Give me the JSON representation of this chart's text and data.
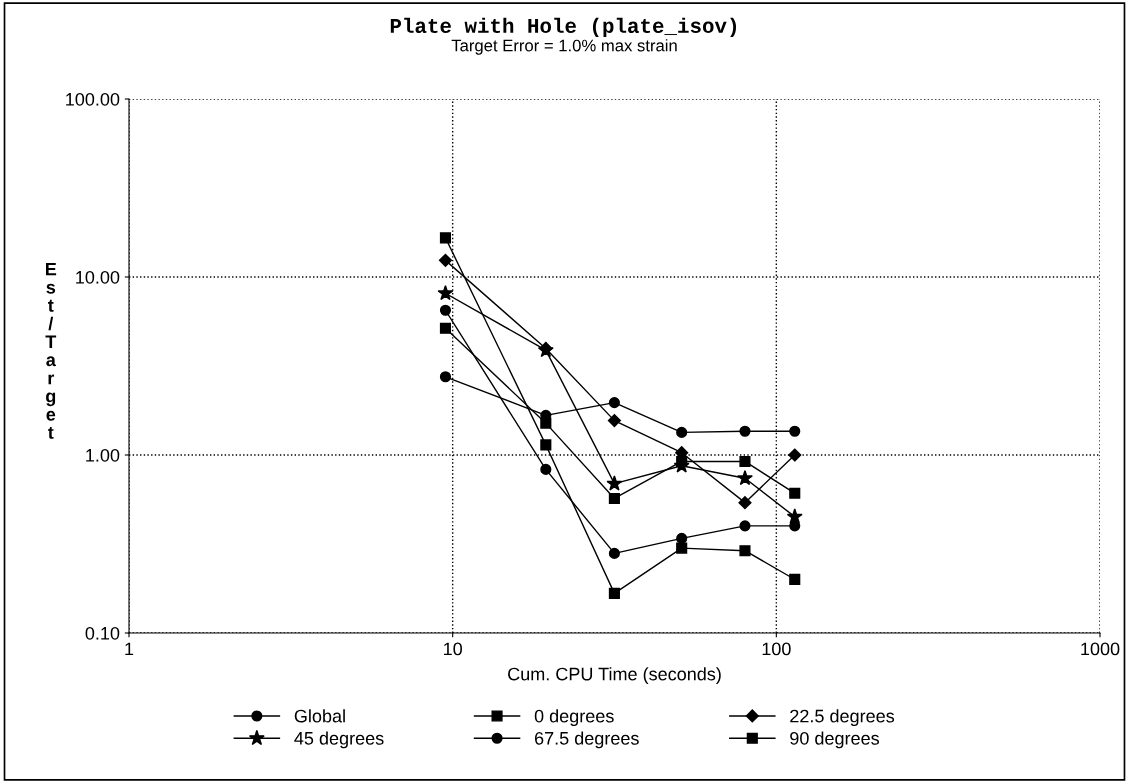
{
  "chart_data": {
    "type": "line",
    "title": "Plate with Hole (plate_isov)",
    "subtitle": "Target Error = 1.0% max strain",
    "xlabel": "Cum. CPU Time (seconds)",
    "ylabel": "Est/Target",
    "x": [
      9.5,
      19.4,
      31.6,
      51,
      80,
      114
    ],
    "log": "xy",
    "xlim": [
      1,
      1000
    ],
    "ylim": [
      0.1,
      100
    ],
    "xticks": [
      1,
      10,
      100,
      1000
    ],
    "yticks": [
      {
        "value": 0.1,
        "label": "0.10"
      },
      {
        "value": 1,
        "label": "1.00"
      },
      {
        "value": 10,
        "label": "10.00"
      },
      {
        "value": 100,
        "label": "100.00"
      }
    ],
    "grid": true,
    "legend": "bottom",
    "line_style": "solid",
    "series": [
      {
        "name": "Global",
        "color": "#000000",
        "marker": "circle",
        "values": [
          2.75,
          1.67,
          1.97,
          1.34,
          1.36,
          1.36
        ]
      },
      {
        "name": "0 degrees",
        "color": "#000000",
        "marker": "square",
        "values": [
          16.6,
          1.14,
          0.167,
          0.3,
          0.29,
          0.2
        ]
      },
      {
        "name": "22.5 degrees",
        "color": "#000000",
        "marker": "diamond",
        "values": [
          12.4,
          3.97,
          1.56,
          1.03,
          0.54,
          1.0
        ]
      },
      {
        "name": "45 degrees",
        "color": "#000000",
        "marker": "star",
        "values": [
          8.1,
          3.88,
          0.69,
          0.87,
          0.74,
          0.45
        ]
      },
      {
        "name": "67.5 degrees",
        "color": "#000000",
        "marker": "circle",
        "values": [
          6.5,
          0.83,
          0.28,
          0.34,
          0.4,
          0.4
        ]
      },
      {
        "name": "90 degrees",
        "color": "#000000",
        "marker": "square",
        "values": [
          5.15,
          1.51,
          0.57,
          0.92,
          0.92,
          0.61
        ]
      }
    ]
  }
}
